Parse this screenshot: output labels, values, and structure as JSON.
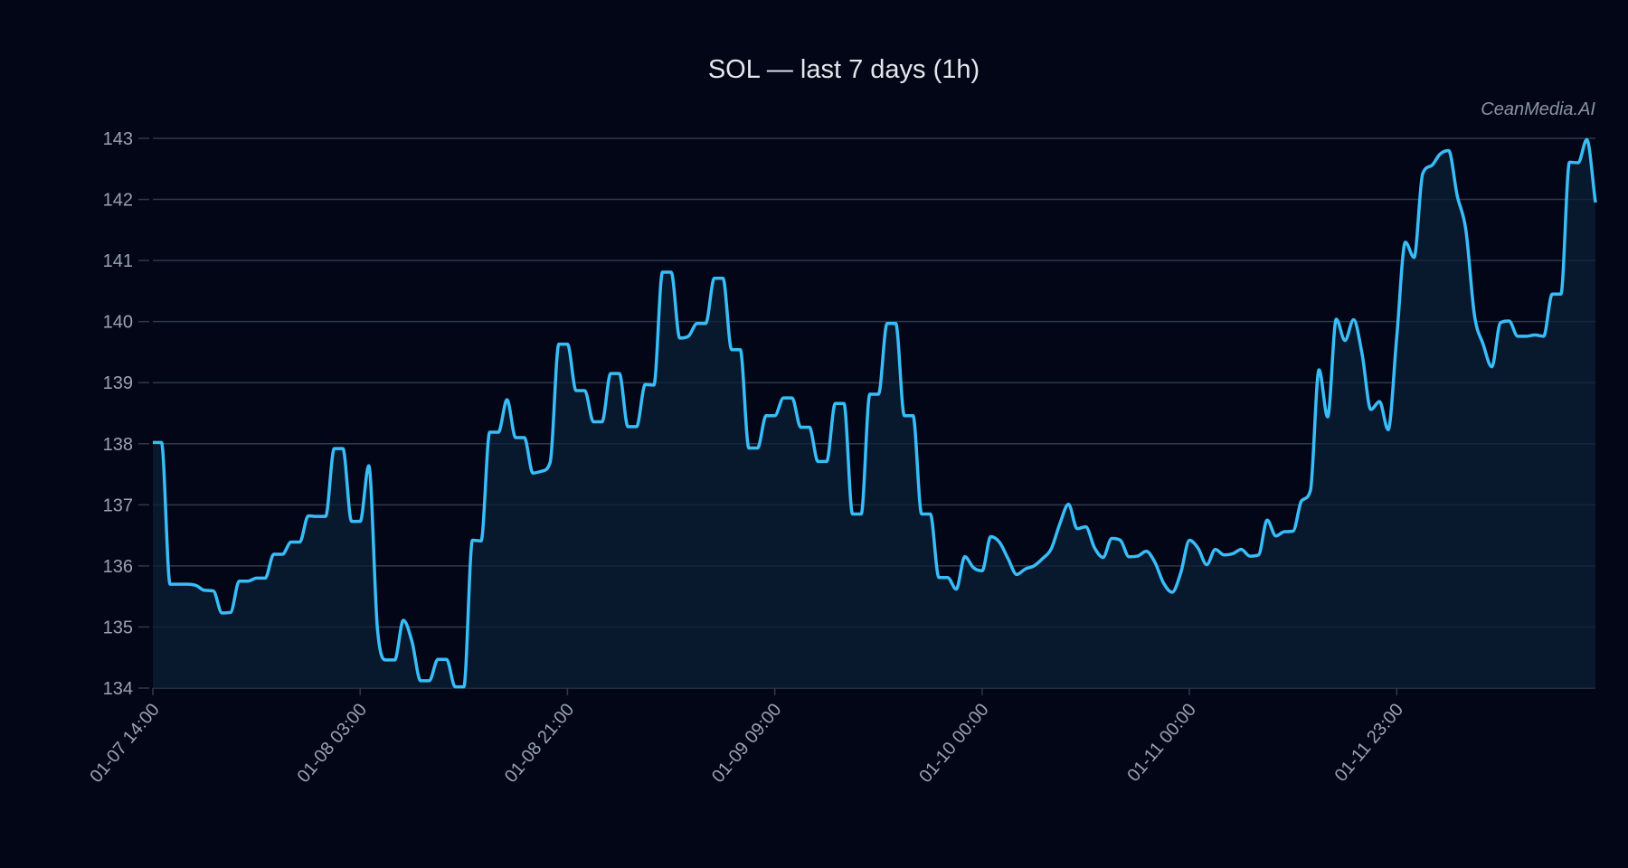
{
  "chart_data": {
    "type": "line",
    "title": "SOL — last 7 days (1h)",
    "watermark": "CeanMedia.AI",
    "xlabel": "",
    "ylabel": "",
    "ylim": [
      134,
      143
    ],
    "yticks": [
      134,
      135,
      136,
      137,
      138,
      139,
      140,
      141,
      142,
      143
    ],
    "grid": true,
    "colors": {
      "background": "#020617",
      "line": "#38bdf8",
      "fill": "#0c2036",
      "grid": "#2f3a4b",
      "tick_text": "#9aa3b2"
    },
    "xticks": [
      {
        "index": 0,
        "label": "01-07 14:00"
      },
      {
        "index": 24,
        "label": "01-08 03:00"
      },
      {
        "index": 48,
        "label": "01-08 21:00"
      },
      {
        "index": 72,
        "label": "01-09 09:00"
      },
      {
        "index": 96,
        "label": "01-10 00:00"
      },
      {
        "index": 120,
        "label": "01-11 00:00"
      },
      {
        "index": 144,
        "label": "01-11 23:00"
      }
    ],
    "series": [
      {
        "values": [
          138.02,
          138.02,
          135.7,
          135.7,
          135.7,
          135.68,
          135.6,
          135.59,
          135.23,
          135.24,
          135.75,
          135.75,
          135.8,
          135.8,
          136.19,
          136.19,
          136.39,
          136.39,
          136.82,
          136.81,
          136.81,
          137.92,
          137.92,
          136.73,
          136.73,
          137.64,
          134.97,
          134.46,
          134.46,
          135.11,
          134.76,
          134.12,
          134.12,
          134.47,
          134.47,
          134.02,
          134.02,
          136.42,
          136.41,
          138.19,
          138.19,
          138.72,
          138.1,
          138.1,
          137.52,
          137.55,
          137.7,
          139.63,
          139.63,
          138.87,
          138.87,
          138.36,
          138.36,
          139.15,
          139.15,
          138.28,
          138.28,
          138.97,
          138.96,
          140.81,
          140.81,
          139.73,
          139.76,
          139.97,
          139.97,
          140.71,
          140.71,
          139.54,
          139.54,
          137.93,
          137.93,
          138.46,
          138.46,
          138.75,
          138.75,
          138.27,
          138.27,
          137.71,
          137.71,
          138.66,
          138.66,
          136.85,
          136.85,
          138.81,
          138.81,
          139.97,
          139.97,
          138.46,
          138.46,
          136.85,
          136.85,
          135.81,
          135.81,
          135.62,
          136.15,
          135.97,
          135.92,
          136.48,
          136.39,
          136.12,
          135.86,
          135.95,
          136.0,
          136.12,
          136.28,
          136.69,
          137.01,
          136.61,
          136.64,
          136.3,
          136.14,
          136.45,
          136.42,
          136.15,
          136.16,
          136.24,
          136.06,
          135.72,
          135.57,
          135.89,
          136.42,
          136.29,
          136.02,
          136.27,
          136.18,
          136.2,
          136.27,
          136.16,
          136.18,
          136.75,
          136.49,
          136.56,
          136.57,
          137.07,
          137.23,
          139.21,
          138.44,
          140.04,
          139.69,
          140.03,
          139.46,
          138.56,
          138.69,
          138.23,
          139.75,
          141.3,
          141.05,
          142.42,
          142.55,
          142.74,
          142.8,
          142.06,
          141.5,
          140.1,
          139.63,
          139.26,
          139.98,
          140.01,
          139.76,
          139.76,
          139.78,
          139.76,
          140.45,
          140.45,
          142.61,
          142.6,
          142.98,
          141.95
        ]
      }
    ]
  }
}
